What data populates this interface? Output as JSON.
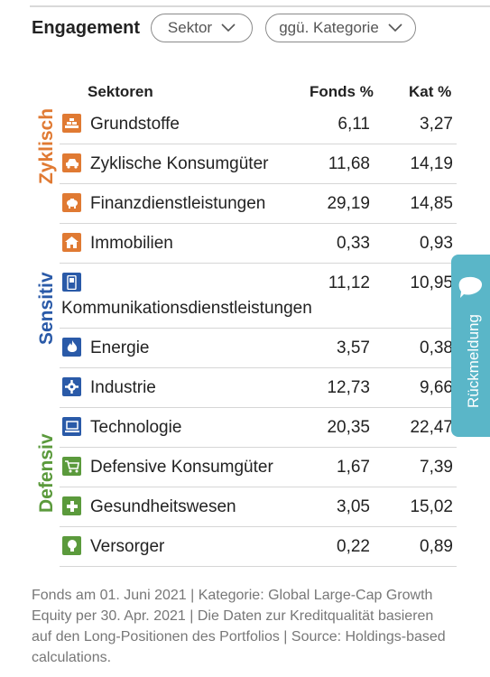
{
  "header": {
    "title": "Engagement",
    "sector_filter": "Sektor",
    "category_filter": "ggü. Kategorie"
  },
  "table": {
    "col_sector": "Sektoren",
    "col_fonds": "Fonds  %",
    "col_kat": "Kat  %",
    "groups": {
      "zyklisch": "Zyklisch",
      "sensitiv": "Sensitiv",
      "defensiv": "Defensiv"
    },
    "rows": [
      {
        "label": "Grundstoffe",
        "fonds": "6,11",
        "kat": "3,27"
      },
      {
        "label": "Zyklische Konsumgüter",
        "fonds": "11,68",
        "kat": "14,19"
      },
      {
        "label": "Finanzdienstleistungen",
        "fonds": "29,19",
        "kat": "14,85"
      },
      {
        "label": "Immobilien",
        "fonds": "0,33",
        "kat": "0,93"
      },
      {
        "label": "Kommunikationsdienstleistungen",
        "fonds": "11,12",
        "kat": "10,95"
      },
      {
        "label": "Energie",
        "fonds": "3,57",
        "kat": "0,38"
      },
      {
        "label": "Industrie",
        "fonds": "12,73",
        "kat": "9,66"
      },
      {
        "label": "Technologie",
        "fonds": "20,35",
        "kat": "22,47"
      },
      {
        "label": "Defensive Konsumgüter",
        "fonds": "1,67",
        "kat": "7,39"
      },
      {
        "label": "Gesundheitswesen",
        "fonds": "3,05",
        "kat": "15,02"
      },
      {
        "label": "Versorger",
        "fonds": "0,22",
        "kat": "0,89"
      }
    ]
  },
  "footnote": "Fonds am 01. Juni 2021 | Kategorie: Global Large-Cap Growth Equity per 30. Apr. 2021 | Die Daten zur Kreditqualität basieren auf den Long-Positionen des Portfolios | Source: Holdings-based calculations.",
  "feedback": {
    "label": "Rückmeldung"
  },
  "colors": {
    "zyklisch": "#e07a33",
    "sensitiv": "#2a5aa8",
    "defensiv": "#5b9a3c",
    "feedback_tab": "#5ab6c8"
  },
  "icons": [
    "bricks-icon",
    "car-icon",
    "piggy-bank-icon",
    "house-icon",
    "phone-icon",
    "flame-icon",
    "gear-icon",
    "computer-icon",
    "cart-icon",
    "medical-cross-icon",
    "lightbulb-icon"
  ]
}
